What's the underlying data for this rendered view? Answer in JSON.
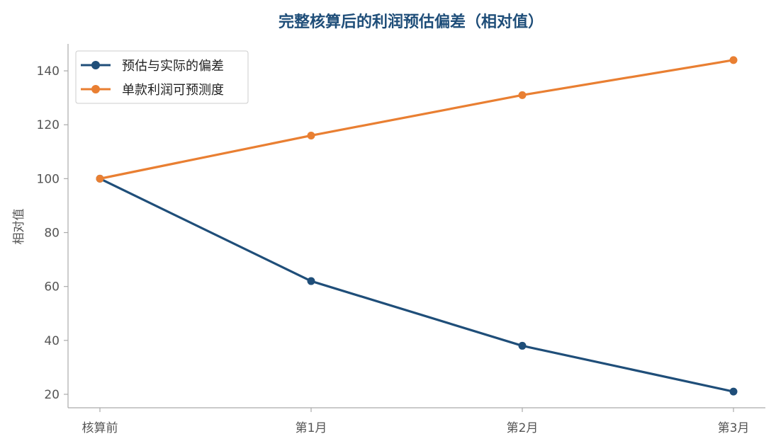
{
  "chart_data": {
    "type": "line",
    "title": "完整核算后的利润预估偏差（相对值）",
    "xlabel": "",
    "ylabel": "相对值",
    "categories": [
      "核算前",
      "第1月",
      "第2月",
      "第3月"
    ],
    "ylim": [
      15,
      150
    ],
    "yticks": [
      20,
      40,
      60,
      80,
      100,
      120,
      140
    ],
    "grid": false,
    "legend_position": "top-left",
    "series": [
      {
        "name": "预估与实际的偏差",
        "values": [
          100,
          62,
          38,
          21
        ],
        "color": "#1f4e79"
      },
      {
        "name": "单款利润可预测度",
        "values": [
          100,
          116,
          131,
          144
        ],
        "color": "#e97f32"
      }
    ]
  },
  "colors": {
    "title": "#1f4e79",
    "axis": "#aaaaaa",
    "tick_text": "#555555"
  }
}
